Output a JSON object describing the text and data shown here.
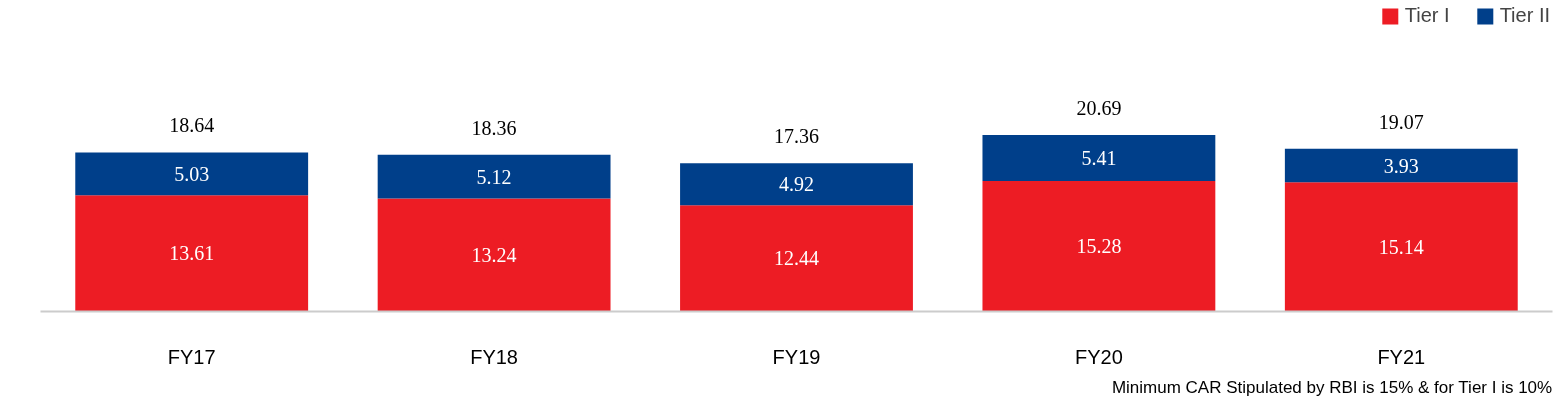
{
  "chart_data": {
    "type": "bar",
    "stacked": true,
    "categories": [
      "FY17",
      "FY18",
      "FY19",
      "FY20",
      "FY21"
    ],
    "series": [
      {
        "name": "Tier I",
        "color": "#ed1c24",
        "values": [
          13.61,
          13.24,
          12.44,
          15.28,
          15.14
        ]
      },
      {
        "name": "Tier II",
        "color": "#003f8a",
        "values": [
          5.03,
          5.12,
          4.92,
          5.41,
          3.93
        ]
      }
    ],
    "data_labels": true,
    "totals": [
      "18.64",
      "18.36",
      "17.36",
      "20.69",
      "19.07"
    ],
    "legend": "top right",
    "grid": false,
    "annotations": [
      "Minimum CAR Stipulated by RBI is 15% & for Tier I is 10%"
    ]
  }
}
